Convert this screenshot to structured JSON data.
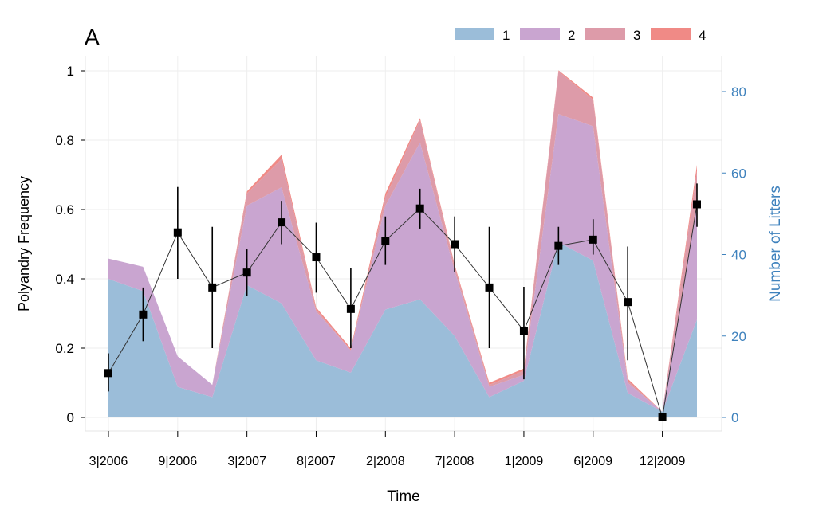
{
  "chart_data": {
    "type": "area",
    "panel_label": "A",
    "xlabel": "Time",
    "ylabel": "Polyandry Frequency",
    "ylabel_right": "Number of Litters",
    "ylim": [
      0,
      1
    ],
    "ylim_right": [
      0,
      85
    ],
    "yticks": [
      "0",
      "0.2",
      "0.4",
      "0.6",
      "0.8",
      "1"
    ],
    "yticks_right": [
      "0",
      "20",
      "40",
      "60",
      "80"
    ],
    "x_count": 18,
    "xtick_labels": [
      "3|2006",
      "9|2006",
      "3|2007",
      "8|2007",
      "2|2008",
      "7|2008",
      "1|2009",
      "6|2009",
      "12|2009"
    ],
    "grid": true,
    "legend_position": "top-right",
    "colors": {
      "1": "#9bbdd9",
      "2": "#c9a5d0",
      "3": "#dd9ba9",
      "4": "#f08a86",
      "right_axis": "#3f82bd"
    },
    "litter_series": [
      {
        "name": "1",
        "values": [
          34,
          31,
          7.5,
          5,
          32.5,
          28,
          14,
          11,
          26.5,
          29,
          20,
          5,
          9,
          43,
          38.5,
          6,
          1.4,
          24
        ]
      },
      {
        "name": "2",
        "values": [
          5,
          6,
          7.5,
          3,
          19.5,
          28.5,
          12,
          5.5,
          25.5,
          38.5,
          16,
          2.5,
          1.5,
          31.5,
          33,
          2.5,
          0,
          28
        ]
      },
      {
        "name": "3",
        "values": [
          0,
          0,
          0,
          0,
          3,
          7,
          0.5,
          0,
          2,
          5.5,
          1,
          0.5,
          1,
          10.5,
          6.5,
          0.5,
          0,
          8.5
        ]
      },
      {
        "name": "4",
        "values": [
          0,
          0,
          0,
          0,
          0.5,
          1,
          0.5,
          0.5,
          1,
          0.5,
          0.5,
          0.5,
          0.5,
          0.2,
          0.5,
          0.5,
          0,
          1.5
        ]
      }
    ],
    "polyandry": {
      "values": [
        0.128,
        0.297,
        0.534,
        0.375,
        0.418,
        0.563,
        0.462,
        0.313,
        0.51,
        0.603,
        0.5,
        0.375,
        0.25,
        0.495,
        0.513,
        0.333,
        0,
        0.615
      ],
      "lower": [
        0.075,
        0.22,
        0.4,
        0.2,
        0.35,
        0.5,
        0.36,
        0.2,
        0.44,
        0.545,
        0.42,
        0.2,
        0.11,
        0.44,
        0.47,
        0.165,
        0,
        0.55
      ],
      "upper": [
        0.185,
        0.375,
        0.665,
        0.55,
        0.485,
        0.625,
        0.562,
        0.43,
        0.58,
        0.66,
        0.58,
        0.55,
        0.377,
        0.55,
        0.572,
        0.493,
        0,
        0.675
      ]
    }
  }
}
